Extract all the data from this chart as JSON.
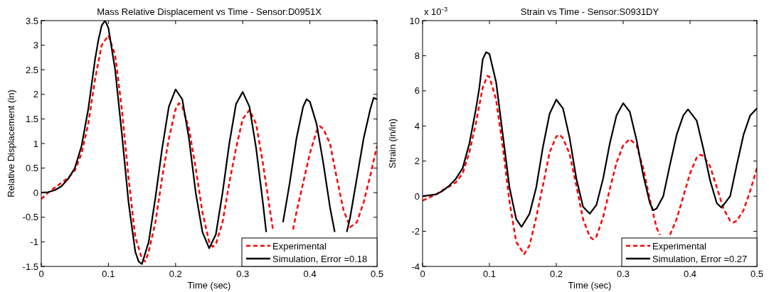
{
  "chart_data": [
    {
      "type": "line",
      "title": "Mass Relative Displacement vs Time - Sensor:D0951X",
      "xlabel": "Time (sec)",
      "ylabel": "Relative Displacement (in)",
      "xlim": [
        0,
        0.5
      ],
      "ylim": [
        -1.5,
        3.5
      ],
      "xticks": [
        0,
        0.1,
        0.2,
        0.3,
        0.4,
        0.5
      ],
      "yticks": [
        -1.5,
        -1,
        -0.5,
        0,
        0.5,
        1,
        1.5,
        2,
        2.5,
        3,
        3.5
      ],
      "legend": "bottom right",
      "grid": false,
      "series": [
        {
          "name": "Experimental",
          "color": "#ff0000",
          "line_style": "dashed",
          "x": [
            0,
            0.01,
            0.02,
            0.03,
            0.04,
            0.05,
            0.06,
            0.07,
            0.08,
            0.09,
            0.1,
            0.11,
            0.12,
            0.13,
            0.14,
            0.15,
            0.155,
            0.16,
            0.17,
            0.18,
            0.19,
            0.2,
            0.205,
            0.21,
            0.22,
            0.23,
            0.24,
            0.25,
            0.255,
            0.26,
            0.27,
            0.28,
            0.29,
            0.3,
            0.31,
            0.32,
            0.33,
            0.34,
            0.345,
            0.35,
            0.36,
            0.375,
            0.38,
            0.39,
            0.4,
            0.41,
            0.415,
            0.42,
            0.43,
            0.44,
            0.45,
            0.46,
            0.47,
            0.48,
            0.49,
            0.5
          ],
          "values": [
            -0.13,
            0.0,
            0.1,
            0.2,
            0.3,
            0.45,
            0.8,
            1.4,
            2.3,
            3.0,
            3.2,
            2.8,
            1.7,
            0.3,
            -0.9,
            -1.35,
            -1.4,
            -1.2,
            -0.6,
            0.3,
            1.1,
            1.7,
            1.82,
            1.75,
            1.3,
            0.5,
            -0.4,
            -1.0,
            -1.1,
            -1.05,
            -0.6,
            0.2,
            0.9,
            1.5,
            1.68,
            1.4,
            0.6,
            -0.3,
            -0.75,
            null,
            null,
            -0.75,
            -0.4,
            0.2,
            0.8,
            1.25,
            1.35,
            1.3,
            1.0,
            0.3,
            -0.35,
            -0.7,
            -0.6,
            -0.2,
            0.35,
            0.95
          ]
        },
        {
          "name": "Simulation, Error =0.18",
          "color": "#000000",
          "line_style": "solid",
          "x": [
            0,
            0.01,
            0.02,
            0.03,
            0.04,
            0.05,
            0.06,
            0.07,
            0.08,
            0.085,
            0.09,
            0.095,
            0.1,
            0.11,
            0.12,
            0.13,
            0.14,
            0.145,
            0.15,
            0.16,
            0.17,
            0.18,
            0.19,
            0.2,
            0.21,
            0.22,
            0.23,
            0.24,
            0.25,
            0.26,
            0.27,
            0.28,
            0.29,
            0.3,
            0.31,
            0.32,
            0.33,
            0.335,
            0.34,
            0.35,
            0.36,
            0.37,
            0.38,
            0.39,
            0.395,
            0.4,
            0.41,
            0.42,
            0.43,
            0.437,
            0.44,
            0.45,
            0.455,
            0.46,
            0.47,
            0.48,
            0.49,
            0.495,
            0.5
          ],
          "values": [
            0,
            0.01,
            0.05,
            0.13,
            0.28,
            0.5,
            0.95,
            1.7,
            2.7,
            3.1,
            3.4,
            3.5,
            3.35,
            2.5,
            1.2,
            -0.2,
            -1.2,
            -1.4,
            -1.45,
            -1.0,
            -0.1,
            0.9,
            1.75,
            2.1,
            1.9,
            1.1,
            0.0,
            -0.8,
            -1.13,
            -0.85,
            0.0,
            1.0,
            1.8,
            2.05,
            1.75,
            0.9,
            -0.2,
            -0.8,
            null,
            null,
            -0.6,
            0.2,
            1.1,
            1.75,
            1.9,
            1.85,
            1.4,
            0.6,
            -0.3,
            -0.8,
            null,
            null,
            -0.8,
            -0.5,
            0.3,
            1.1,
            1.7,
            1.93,
            1.9
          ]
        }
      ]
    },
    {
      "type": "line",
      "title": "Strain vs Time - Sensor:S0931DY",
      "xlabel": "Time (sec)",
      "ylabel": "Strain (in/in)",
      "annotations": [
        "x 10$^{-3}$"
      ],
      "xlim": [
        0,
        0.5
      ],
      "ylim": [
        -4,
        10
      ],
      "xticks": [
        0,
        0.1,
        0.2,
        0.3,
        0.4,
        0.5
      ],
      "yticks": [
        -4,
        -2,
        0,
        2,
        4,
        6,
        8,
        10
      ],
      "legend": "bottom right",
      "grid": false,
      "series": [
        {
          "name": "Experimental",
          "color": "#ff0000",
          "line_style": "dashed",
          "x": [
            0,
            0.02,
            0.03,
            0.04,
            0.05,
            0.06,
            0.07,
            0.08,
            0.09,
            0.097,
            0.1,
            0.11,
            0.12,
            0.13,
            0.14,
            0.152,
            0.16,
            0.17,
            0.18,
            0.19,
            0.2,
            0.205,
            0.21,
            0.22,
            0.23,
            0.24,
            0.25,
            0.255,
            0.26,
            0.27,
            0.28,
            0.29,
            0.3,
            0.31,
            0.32,
            0.33,
            0.34,
            0.35,
            0.355,
            0.36,
            0.365,
            0.37,
            0.38,
            0.39,
            0.4,
            0.41,
            0.415,
            0.42,
            0.43,
            0.44,
            0.45,
            0.46,
            0.465,
            0.47,
            0.48,
            0.49,
            0.5
          ],
          "values": [
            -0.25,
            0.1,
            0.35,
            0.55,
            0.8,
            1.3,
            2.5,
            4.2,
            6.2,
            6.85,
            6.8,
            5.5,
            2.8,
            -0.3,
            -2.6,
            -3.3,
            -2.8,
            -1.2,
            0.6,
            2.5,
            3.4,
            3.5,
            3.3,
            2.4,
            0.6,
            -1.3,
            -2.3,
            -2.45,
            -2.3,
            -1.2,
            0.4,
            1.9,
            2.9,
            3.25,
            2.9,
            1.6,
            -0.2,
            -1.8,
            -2.2,
            null,
            null,
            -2.2,
            -1.3,
            0.0,
            1.3,
            2.2,
            2.35,
            2.3,
            1.7,
            0.5,
            -0.7,
            -1.4,
            -1.5,
            -1.4,
            -0.8,
            0.3,
            1.6
          ]
        },
        {
          "name": "Simulation, Error =0.27",
          "color": "#000000",
          "line_style": "solid",
          "x": [
            0,
            0.02,
            0.03,
            0.04,
            0.05,
            0.06,
            0.07,
            0.08,
            0.085,
            0.09,
            0.095,
            0.1,
            0.11,
            0.12,
            0.13,
            0.14,
            0.148,
            0.16,
            0.17,
            0.18,
            0.19,
            0.2,
            0.21,
            0.22,
            0.23,
            0.24,
            0.25,
            0.26,
            0.27,
            0.28,
            0.29,
            0.3,
            0.31,
            0.32,
            0.33,
            0.34,
            0.345,
            0.35,
            0.36,
            0.37,
            0.38,
            0.39,
            0.397,
            0.41,
            0.42,
            0.43,
            0.44,
            0.447,
            0.46,
            0.47,
            0.48,
            0.49,
            0.5
          ],
          "values": [
            0,
            0.1,
            0.3,
            0.6,
            1.0,
            1.6,
            3.0,
            5.0,
            6.2,
            7.8,
            8.2,
            8.1,
            6.5,
            3.5,
            0.5,
            -1.3,
            -1.75,
            -1.0,
            0.5,
            2.8,
            4.7,
            5.5,
            5.0,
            3.3,
            1.0,
            -0.6,
            -1.0,
            -0.5,
            1.0,
            3.0,
            4.6,
            5.3,
            4.8,
            3.2,
            1.2,
            -0.4,
            -0.8,
            -0.7,
            0.0,
            1.8,
            3.5,
            4.6,
            4.95,
            4.3,
            2.7,
            0.9,
            -0.4,
            -0.65,
            0.0,
            1.8,
            3.5,
            4.6,
            5.0
          ]
        }
      ]
    }
  ]
}
